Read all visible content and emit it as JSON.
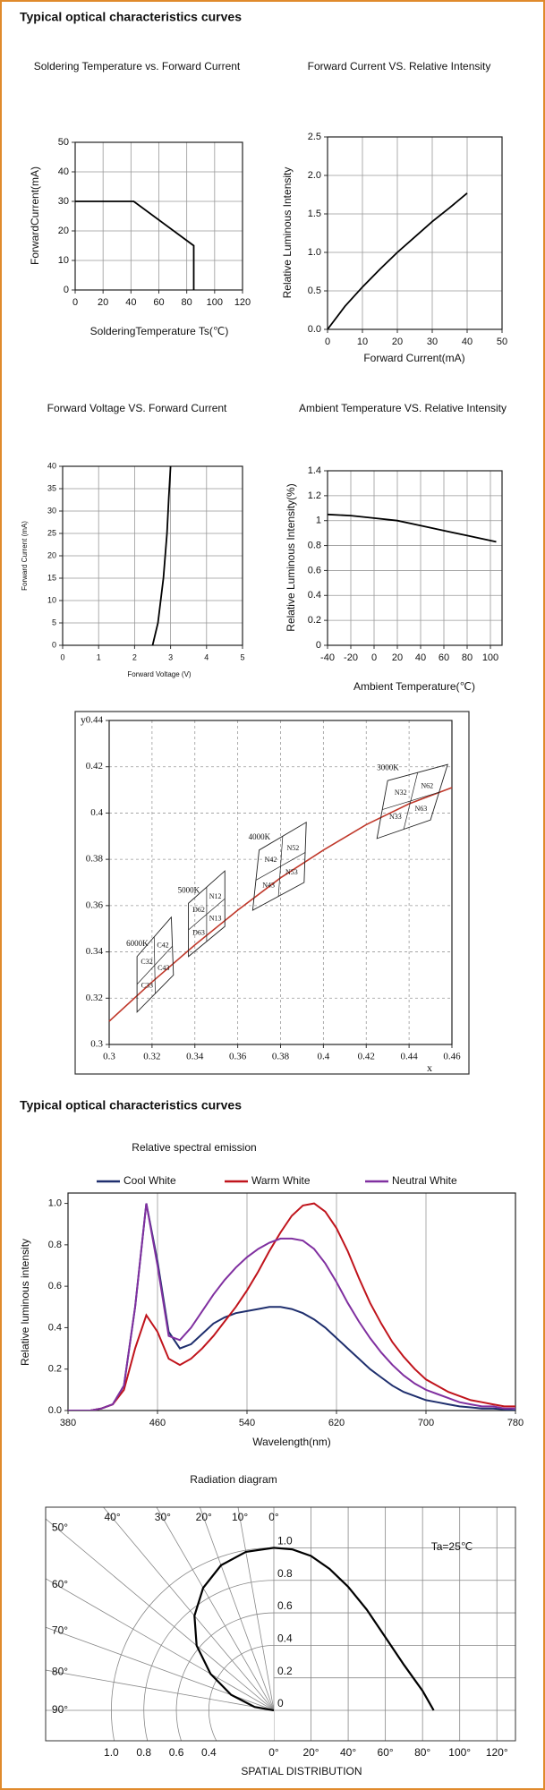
{
  "headings": [
    "Typical optical characteristics curves",
    "Typical optical characteristics curves"
  ],
  "chart_data": [
    {
      "type": "line",
      "title": "Soldering Temperature vs. Forward Current",
      "x_label": "SolderingTemperature Ts(℃)",
      "y_label": "ForwardCurrent(mA)",
      "x": [
        0,
        42,
        85,
        85
      ],
      "values": [
        30,
        30,
        15,
        0
      ],
      "color": "#000000",
      "xlim": [
        0,
        120
      ],
      "ylim": [
        0,
        50
      ],
      "xticks": [
        0,
        20,
        40,
        60,
        80,
        100,
        120
      ],
      "yticks": [
        0,
        10,
        20,
        30,
        40,
        50
      ],
      "grid": true
    },
    {
      "type": "line",
      "title": "Forward Current VS. Relative Intensity",
      "x_label": "Forward Current(mA)",
      "y_label": "Relative Luminous Intensity",
      "x": [
        0,
        5,
        10,
        15,
        20,
        25,
        30,
        35,
        40
      ],
      "values": [
        0,
        0.3,
        0.55,
        0.78,
        1.0,
        1.2,
        1.4,
        1.58,
        1.77
      ],
      "color": "#000000",
      "xlim": [
        0,
        50
      ],
      "ylim": [
        0,
        2.5
      ],
      "xticks": [
        0,
        10,
        20,
        30,
        40,
        50
      ],
      "yticks": [
        {
          "value": 0,
          "label": "0.0"
        },
        0.5,
        {
          "value": 1,
          "label": "1.0"
        },
        1.5,
        {
          "value": 2,
          "label": "2.0"
        },
        2.5
      ],
      "grid": true
    },
    {
      "type": "line",
      "title": "Forward Voltage VS. Forward Current",
      "x_label": "Forward Voltage (V)",
      "y_label": "Forward Current (mA)",
      "x": [
        2.5,
        2.65,
        2.8,
        2.9,
        2.95,
        3.0
      ],
      "values": [
        0,
        5,
        15,
        25,
        33,
        40
      ],
      "color": "#000000",
      "xlim": [
        0,
        5
      ],
      "ylim": [
        0,
        40
      ],
      "xticks": [
        0,
        1,
        2,
        3,
        4,
        5
      ],
      "yticks": [
        0,
        5,
        10,
        15,
        20,
        25,
        30,
        35,
        40
      ],
      "grid": true
    },
    {
      "type": "line",
      "title": "Ambient Temperature VS. Relative Intensity",
      "x_label": "Ambient Temperature(℃)",
      "y_label": "Relative Luminous Intensity(%)",
      "x": [
        -40,
        -20,
        0,
        20,
        40,
        60,
        80,
        105
      ],
      "values": [
        1.05,
        1.04,
        1.02,
        1.0,
        0.96,
        0.92,
        0.88,
        0.83
      ],
      "color": "#000000",
      "xlim": [
        -40,
        110
      ],
      "ylim": [
        0,
        1.4
      ],
      "xticks": [
        -40,
        -20,
        0,
        20,
        40,
        60,
        80,
        100
      ],
      "yticks": [
        0,
        0.2,
        0.4,
        0.6,
        0.8,
        1,
        1.2,
        1.4
      ],
      "grid": true
    },
    {
      "type": "chromaticity",
      "x_label": "x",
      "y_label": "y",
      "x": [
        0.3,
        0.32,
        0.34,
        0.36,
        0.38,
        0.4,
        0.42,
        0.44,
        0.46
      ],
      "values": [
        0.31,
        0.327,
        0.343,
        0.358,
        0.372,
        0.384,
        0.395,
        0.404,
        0.411
      ],
      "color": "#c0392b",
      "xlim": [
        0.3,
        0.46
      ],
      "ylim": [
        0.3,
        0.44
      ],
      "xticks": [
        0.3,
        0.32,
        0.34,
        0.36,
        0.38,
        0.4,
        0.42,
        0.44,
        0.46
      ],
      "yticks": [
        0.3,
        0.32,
        0.34,
        0.36,
        0.38,
        0.4,
        0.42,
        0.44
      ],
      "grid": true,
      "grid_style": "dashed",
      "groups": [
        {
          "name": "6000K",
          "corners_x": [
            0.313,
            0.329,
            0.33,
            0.313
          ],
          "corners_y": [
            0.338,
            0.355,
            0.33,
            0.314
          ],
          "labels": [
            "C32",
            "C42",
            "C33",
            "C43"
          ]
        },
        {
          "name": "5000K",
          "corners_x": [
            0.337,
            0.354,
            0.354,
            0.337
          ],
          "corners_y": [
            0.361,
            0.375,
            0.351,
            0.338
          ],
          "labels": [
            "D62",
            "N12",
            "D63",
            "N13"
          ]
        },
        {
          "name": "4000K",
          "corners_x": [
            0.37,
            0.392,
            0.391,
            0.367
          ],
          "corners_y": [
            0.384,
            0.396,
            0.37,
            0.358
          ],
          "labels": [
            "N42",
            "N52",
            "N43",
            "N53"
          ]
        },
        {
          "name": "3000K",
          "corners_x": [
            0.43,
            0.458,
            0.45,
            0.425
          ],
          "corners_y": [
            0.414,
            0.421,
            0.397,
            0.389
          ],
          "labels": [
            "N32",
            "N62",
            "N33",
            "N63"
          ]
        }
      ]
    },
    {
      "type": "line",
      "title": "Relative spectral emission",
      "x_label": "Wavelength(nm)",
      "y_label": "Relative luminous intensity",
      "x": [
        380,
        390,
        400,
        410,
        420,
        430,
        440,
        450,
        460,
        470,
        480,
        490,
        500,
        510,
        520,
        530,
        540,
        550,
        560,
        570,
        580,
        590,
        600,
        610,
        620,
        630,
        640,
        650,
        660,
        670,
        680,
        690,
        700,
        710,
        720,
        730,
        740,
        750,
        760,
        770,
        780
      ],
      "series": [
        {
          "name": "Cool White",
          "color": "#1f2f6e",
          "values": [
            0,
            0,
            0,
            0.01,
            0.03,
            0.12,
            0.5,
            1.0,
            0.72,
            0.38,
            0.3,
            0.32,
            0.37,
            0.42,
            0.45,
            0.47,
            0.48,
            0.49,
            0.5,
            0.5,
            0.49,
            0.47,
            0.44,
            0.4,
            0.35,
            0.3,
            0.25,
            0.2,
            0.16,
            0.12,
            0.09,
            0.07,
            0.05,
            0.04,
            0.03,
            0.02,
            0.015,
            0.01,
            0.01,
            0.005,
            0
          ]
        },
        {
          "name": "Warm White",
          "color": "#c0141c",
          "values": [
            0,
            0,
            0,
            0.01,
            0.03,
            0.1,
            0.3,
            0.46,
            0.38,
            0.25,
            0.22,
            0.25,
            0.3,
            0.36,
            0.43,
            0.5,
            0.58,
            0.67,
            0.77,
            0.86,
            0.94,
            0.99,
            1.0,
            0.96,
            0.88,
            0.77,
            0.64,
            0.52,
            0.42,
            0.33,
            0.26,
            0.2,
            0.15,
            0.12,
            0.09,
            0.07,
            0.05,
            0.04,
            0.03,
            0.02,
            0.02
          ]
        },
        {
          "name": "Neutral White",
          "color": "#8030a0",
          "values": [
            0,
            0,
            0,
            0.01,
            0.03,
            0.12,
            0.5,
            1.0,
            0.7,
            0.36,
            0.34,
            0.4,
            0.48,
            0.56,
            0.63,
            0.69,
            0.74,
            0.78,
            0.81,
            0.83,
            0.83,
            0.82,
            0.78,
            0.71,
            0.62,
            0.52,
            0.43,
            0.35,
            0.28,
            0.22,
            0.17,
            0.13,
            0.1,
            0.08,
            0.06,
            0.04,
            0.03,
            0.02,
            0.02,
            0.01,
            0.01
          ]
        }
      ],
      "xlim": [
        380,
        780
      ],
      "ylim": [
        0,
        1.05
      ],
      "xticks": [
        380,
        460,
        540,
        620,
        700,
        780
      ],
      "yticks": [
        {
          "value": 0,
          "label": "0.0"
        },
        0.2,
        0.4,
        0.6,
        0.8,
        {
          "value": 1,
          "label": "1.0"
        }
      ],
      "grid": "x",
      "legend": "top"
    },
    {
      "type": "radiation",
      "title": "Radiation diagram",
      "annotation": "Ta=25℃",
      "x_label": "SPATIAL DISTRIBUTION",
      "angles": [
        0,
        10,
        20,
        30,
        40,
        50,
        60,
        70,
        80,
        86
      ],
      "values": [
        1,
        0.99,
        0.95,
        0.87,
        0.76,
        0.62,
        0.45,
        0.28,
        0.12,
        0
      ],
      "color": "#000000",
      "xlim": [
        0,
        130
      ],
      "xticks": [
        {
          "value": 0,
          "label": "0°"
        },
        {
          "value": 20,
          "label": "20°"
        },
        {
          "value": 40,
          "label": "40°"
        },
        {
          "value": 60,
          "label": "60°"
        },
        {
          "value": 80,
          "label": "80°"
        },
        {
          "value": 100,
          "label": "100°"
        },
        {
          "value": 120,
          "label": "120°"
        }
      ],
      "ylim": [
        0,
        1.25
      ],
      "yticks": [
        0,
        0.2,
        0.4,
        0.6,
        0.8,
        {
          "value": 1,
          "label": "1.0"
        }
      ],
      "angle_ticks": [
        {
          "value": 0,
          "label": "0°"
        },
        {
          "value": 10,
          "label": "10°"
        },
        {
          "value": 20,
          "label": "20°"
        },
        {
          "value": 30,
          "label": "30°"
        },
        {
          "value": 40,
          "label": "40°"
        },
        {
          "value": 50,
          "label": "50°"
        },
        {
          "value": 60,
          "label": "60°"
        },
        {
          "value": 70,
          "label": "70°"
        },
        {
          "value": 80,
          "label": "80°"
        },
        {
          "value": 90,
          "label": "90°"
        }
      ],
      "r_ticks": [
        {
          "value": 1,
          "label": "1.0"
        },
        0.8,
        0.6,
        0.4
      ]
    }
  ]
}
